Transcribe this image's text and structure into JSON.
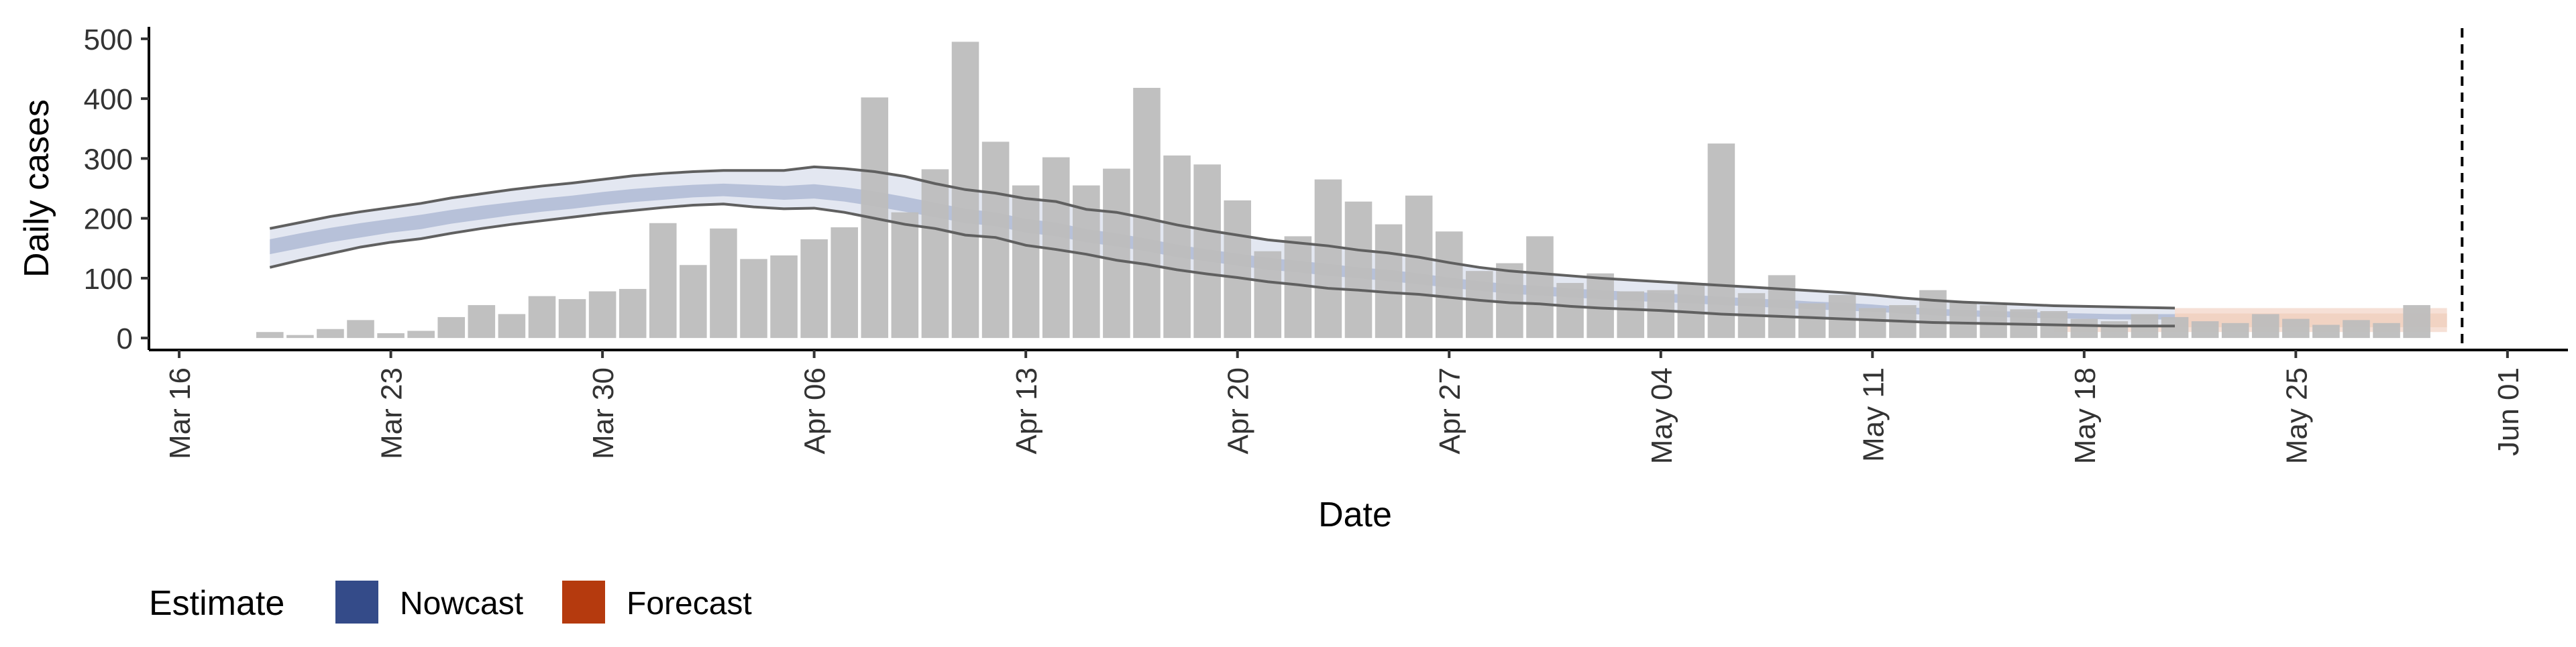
{
  "chart_data": {
    "type": "bar",
    "xlabel": "Date",
    "ylabel": "Daily cases",
    "ylim": [
      -20,
      520
    ],
    "y_ticks": [
      0,
      100,
      200,
      300,
      400,
      500
    ],
    "x_tick_labels": [
      "Mar 16",
      "Mar 23",
      "Mar 30",
      "Apr 06",
      "Apr 13",
      "Apr 20",
      "Apr 27",
      "May 04",
      "May 11",
      "May 18",
      "May 25",
      "Jun 01"
    ],
    "x_tick_dates": [
      "2020-03-16",
      "2020-03-23",
      "2020-03-30",
      "2020-04-06",
      "2020-04-13",
      "2020-04-20",
      "2020-04-27",
      "2020-05-04",
      "2020-05-11",
      "2020-05-18",
      "2020-05-25",
      "2020-06-01"
    ],
    "x_range": [
      "2020-03-15",
      "2020-06-03"
    ],
    "grid": false,
    "bars": {
      "start_date": "2020-03-19",
      "values": [
        10,
        5,
        15,
        30,
        8,
        12,
        35,
        55,
        40,
        70,
        65,
        78,
        82,
        192,
        122,
        183,
        132,
        138,
        165,
        185,
        402,
        210,
        282,
        495,
        328,
        255,
        302,
        255,
        283,
        418,
        305,
        290,
        230,
        145,
        170,
        265,
        228,
        190,
        238,
        178,
        112,
        125,
        170,
        92,
        108,
        78,
        80,
        90,
        325,
        75,
        105,
        58,
        72,
        50,
        55,
        80,
        60,
        55,
        48,
        45,
        32,
        28,
        40,
        35,
        28,
        25,
        40,
        32,
        22,
        30,
        25,
        55
      ],
      "color": "#bdbdbd"
    },
    "dashed_line_date": "2020-05-30",
    "nowcast": {
      "start_date": "2020-03-19",
      "upper": [
        183,
        193,
        203,
        211,
        218,
        225,
        234,
        241,
        248,
        254,
        259,
        265,
        271,
        275,
        278,
        280,
        280,
        280,
        286,
        283,
        278,
        270,
        258,
        248,
        242,
        233,
        228,
        215,
        210,
        200,
        189,
        180,
        172,
        164,
        159,
        154,
        147,
        142,
        135,
        126,
        118,
        112,
        108,
        104,
        100,
        97,
        94,
        91,
        88,
        85,
        82,
        79,
        76,
        72,
        67,
        63,
        60,
        58,
        56,
        54,
        53,
        52,
        51,
        50
      ],
      "lower": [
        118,
        130,
        141,
        152,
        160,
        166,
        175,
        183,
        190,
        196,
        202,
        208,
        213,
        218,
        222,
        224,
        219,
        216,
        217,
        210,
        200,
        190,
        183,
        172,
        168,
        155,
        148,
        140,
        130,
        123,
        114,
        107,
        101,
        94,
        89,
        83,
        80,
        76,
        73,
        68,
        63,
        59,
        57,
        53,
        50,
        48,
        46,
        43,
        40,
        38,
        36,
        34,
        32,
        30,
        28,
        26,
        25,
        24,
        23,
        22,
        21,
        20,
        20,
        20
      ],
      "inner_upper": [
        165,
        175,
        184,
        192,
        199,
        206,
        214,
        221,
        227,
        233,
        238,
        244,
        249,
        253,
        256,
        258,
        256,
        254,
        257,
        252,
        245,
        236,
        226,
        216,
        210,
        199,
        193,
        182,
        175,
        166,
        156,
        148,
        141,
        134,
        129,
        124,
        118,
        114,
        108,
        101,
        95,
        90,
        87,
        83,
        80,
        77,
        75,
        72,
        69,
        66,
        64,
        61,
        59,
        56,
        52,
        49,
        47,
        45,
        44,
        42,
        41,
        40,
        40,
        40
      ],
      "inner_lower": [
        140,
        150,
        160,
        168,
        176,
        182,
        191,
        198,
        205,
        211,
        216,
        222,
        227,
        231,
        235,
        237,
        234,
        231,
        233,
        228,
        220,
        211,
        202,
        192,
        187,
        176,
        170,
        160,
        153,
        145,
        135,
        128,
        121,
        114,
        110,
        104,
        100,
        95,
        90,
        84,
        79,
        74,
        71,
        68,
        65,
        62,
        60,
        58,
        55,
        53,
        50,
        48,
        46,
        44,
        41,
        38,
        36,
        35,
        34,
        33,
        32,
        31,
        31,
        31
      ],
      "outer_color": "#e3e7f1",
      "inner_color": "#b7c1d9",
      "line_color": "#606060"
    },
    "forecast": {
      "start_date": "2020-05-17",
      "end_date": "2020-05-30",
      "upper": 50,
      "lower": 10,
      "color": "#f6e0d6",
      "inner_color": "#efc9b6"
    },
    "legend": {
      "title": "Estimate",
      "placement": "bottom-left",
      "items": [
        {
          "label": "Nowcast",
          "color": "#344b89"
        },
        {
          "label": "Forecast",
          "color": "#b53a0e"
        }
      ]
    }
  }
}
